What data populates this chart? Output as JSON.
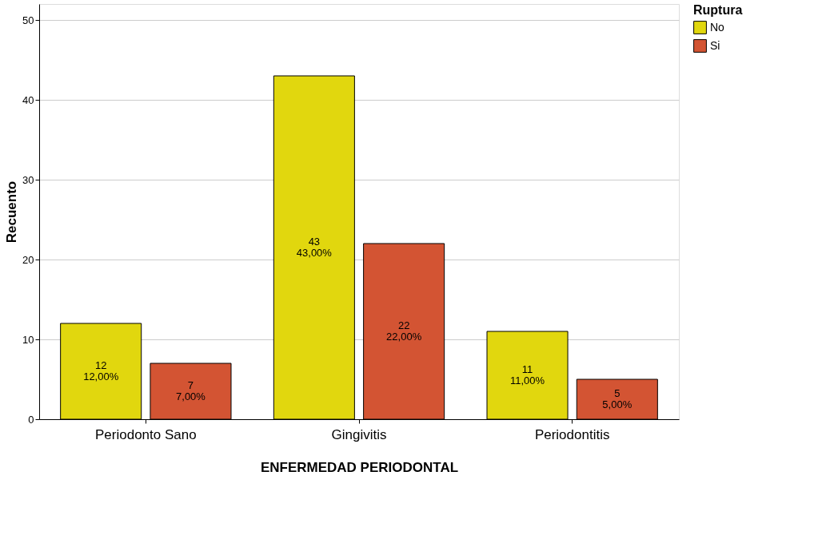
{
  "chart_data": {
    "type": "bar",
    "xlabel": "ENFERMEDAD PERIODONTAL",
    "ylabel": "Recuento",
    "legend_title": "Ruptura",
    "categories": [
      "Periodonto Sano",
      "Gingivitis",
      "Periodontitis"
    ],
    "series": [
      {
        "name": "No",
        "color": "#e1d70e",
        "values": [
          12,
          43,
          11
        ],
        "value_labels": [
          "12\n12,00%",
          "43\n43,00%",
          "11\n11,00%"
        ]
      },
      {
        "name": "Si",
        "color": "#d35433",
        "values": [
          7,
          22,
          5
        ],
        "value_labels": [
          "7\n7,00%",
          "22\n22,00%",
          "5\n5,00%"
        ]
      }
    ],
    "ylim": [
      0,
      52
    ],
    "yticks": [
      0,
      10,
      20,
      30,
      40,
      50
    ],
    "grid": "y",
    "legend": "top right"
  }
}
